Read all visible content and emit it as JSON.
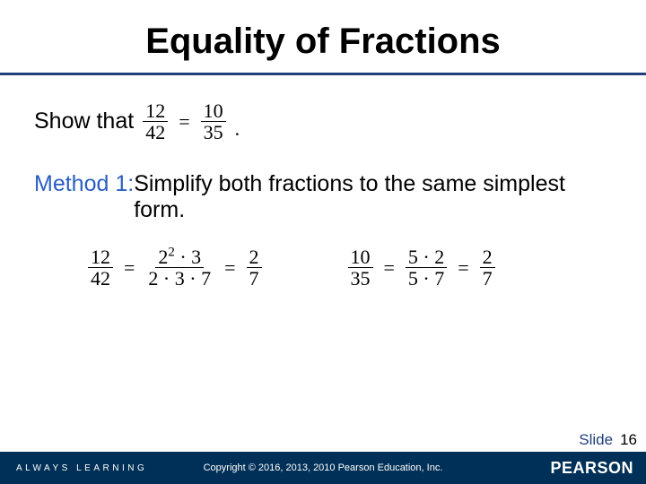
{
  "title": "Equality of Fractions",
  "prompt": {
    "lead": "Show that"
  },
  "showFrac": {
    "a": {
      "num": "12",
      "den": "42"
    },
    "b": {
      "num": "10",
      "den": "35"
    }
  },
  "method": {
    "label": "Method 1:",
    "text": "  Simplify both fractions to the same simplest form."
  },
  "eq1": {
    "f1": {
      "num": "12",
      "den": "42"
    },
    "f2": {
      "num": "2² · 3",
      "den": "2 · 3 · 7"
    },
    "f3": {
      "num": "2",
      "den": "7"
    }
  },
  "eq2": {
    "f1": {
      "num": "10",
      "den": "35"
    },
    "f2": {
      "num": "5 · 2",
      "den": "5 · 7"
    },
    "f3": {
      "num": "2",
      "den": "7"
    }
  },
  "footer": {
    "always": "ALWAYS LEARNING",
    "copyright": "Copyright © 2016, 2013, 2010 Pearson Education, Inc.",
    "brand": "PEARSON",
    "slideLabel": "Slide",
    "slideNum": "16"
  },
  "colors": {
    "ruleColor": "#1f3f7a",
    "methodLabelColor": "#2a5ec4",
    "footerBg": "#003057"
  }
}
